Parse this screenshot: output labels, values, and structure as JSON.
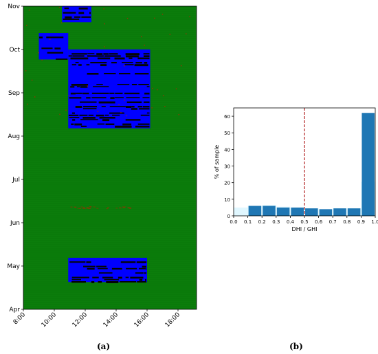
{
  "chart_data": [
    {
      "type": "heatmap",
      "panel_label": "(a)",
      "x_ticks": [
        "8:00",
        "10:00",
        "12:00",
        "14:00",
        "16:00",
        "18:00"
      ],
      "x_tick_hours": [
        8,
        10,
        12,
        14,
        16,
        18
      ],
      "xlim": [
        8,
        19.2
      ],
      "y_ticks": [
        "Apr",
        "May",
        "Jun",
        "Jul",
        "Aug",
        "Sep",
        "Oct",
        "Nov"
      ],
      "y_tick_months": [
        0,
        1,
        2,
        3,
        4,
        5,
        6,
        7
      ],
      "ylim": [
        0,
        7
      ],
      "colors": {
        "background": "#0b7d0b",
        "blue": "#0000ff",
        "black": "#050505",
        "red": "#aa2a00"
      },
      "regions": [
        {
          "color": "blue",
          "hour_start": 10.5,
          "hour_end": 12.4,
          "month_start": 6.63,
          "month_end": 7.0
        },
        {
          "color": "blue",
          "hour_start": 9.0,
          "hour_end": 10.9,
          "month_start": 5.77,
          "month_end": 6.38
        },
        {
          "color": "blue",
          "hour_start": 10.9,
          "hour_end": 16.2,
          "month_start": 4.18,
          "month_end": 6.0
        },
        {
          "color": "blue",
          "hour_start": 10.9,
          "hour_end": 16.0,
          "month_start": 0.63,
          "month_end": 1.19
        }
      ]
    },
    {
      "type": "bar",
      "panel_label": "(b)",
      "xlabel": "DHI / GHI",
      "ylabel": "% of sample",
      "x_ticks": [
        "0.0",
        "0.1",
        "0.2",
        "0.3",
        "0.4",
        "0.5",
        "0.6",
        "0.7",
        "0.8",
        "0.9",
        "1.0"
      ],
      "y_ticks": [
        "0",
        "10",
        "20",
        "30",
        "40",
        "50",
        "60"
      ],
      "xlim": [
        0,
        1
      ],
      "ylim": [
        0,
        65
      ],
      "bin_starts": [
        0.1,
        0.2,
        0.3,
        0.4,
        0.5,
        0.6,
        0.7,
        0.8,
        0.9
      ],
      "values": [
        6,
        6,
        5,
        5,
        4.5,
        4,
        4.5,
        4.5,
        62
      ],
      "background_bins": [
        {
          "start": 0.0,
          "value": 5
        },
        {
          "start": 0.1,
          "value": 6
        },
        {
          "start": 0.2,
          "value": 6.5
        },
        {
          "start": 0.3,
          "value": 5.5
        },
        {
          "start": 0.4,
          "value": 5
        },
        {
          "start": 0.5,
          "value": 4.5
        },
        {
          "start": 0.6,
          "value": 4
        },
        {
          "start": 0.7,
          "value": 4.5
        },
        {
          "start": 0.8,
          "value": 4.5
        },
        {
          "start": 0.9,
          "value": 20.5
        }
      ],
      "threshold": 0.5,
      "bar_color": "#1f77b4",
      "background_color": "#e0f7ff",
      "threshold_color": "#b22222"
    }
  ]
}
